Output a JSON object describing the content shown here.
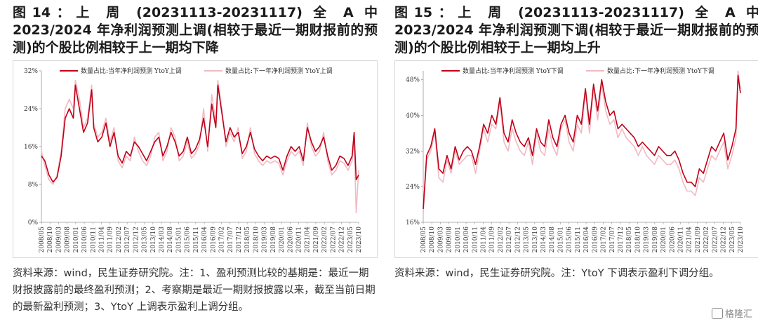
{
  "charts": [
    {
      "title": "图14：上 周 (20231113-20231117) 全 A 中2023/2024 年净利润预测上调(相较于最近一期财报前的预测)的个股比例相较于上一期均下降",
      "note": "资料来源：wind，民生证券研究院。注：1、盈利预测比较的基期是：最近一期财报披露前的最终盈利预测；2、考察期是最近一期财报披露以来，截至当前日期的最新盈利预测；3、YtoY 上调表示盈利上调分组。",
      "chart_data": {
        "type": "line",
        "ylim": [
          0,
          32
        ],
        "yticks": [
          0,
          8,
          16,
          24,
          32
        ],
        "ytick_labels": [
          "0%",
          "8%",
          "16%",
          "24%",
          "32%"
        ],
        "xtick_labels": [
          "2008/05",
          "2008/10",
          "2009/03",
          "2009/08",
          "2010/01",
          "2010/06",
          "2010/11",
          "2011/04",
          "2011/09",
          "2012/02",
          "2012/07",
          "2012/12",
          "2013/05",
          "2013/10",
          "2014/03",
          "2014/08",
          "2015/01",
          "2015/06",
          "2015/11",
          "2016/04",
          "2016/09",
          "2017/02",
          "2017/07",
          "2017/12",
          "2018/05",
          "2018/10",
          "2019/03",
          "2019/08",
          "2020/01",
          "2020/06",
          "2020/11",
          "2021/04",
          "2021/09",
          "2022/02",
          "2022/07",
          "2022/12",
          "2023/05",
          "2023/10"
        ],
        "x_start": 2008.33,
        "x_end": 2023.92,
        "series": [
          {
            "name": "数量占比:当年净利润预测 YtoY上调",
            "color": "#c00018",
            "width": 1.6,
            "x": [
              2008.33,
              2008.5,
              2008.7,
              2008.9,
              2009.1,
              2009.3,
              2009.5,
              2009.7,
              2009.9,
              2010.0,
              2010.2,
              2010.4,
              2010.6,
              2010.8,
              2010.9,
              2011.1,
              2011.3,
              2011.5,
              2011.7,
              2011.9,
              2012.1,
              2012.3,
              2012.5,
              2012.7,
              2012.9,
              2013.1,
              2013.3,
              2013.5,
              2013.7,
              2013.9,
              2014.1,
              2014.3,
              2014.5,
              2014.7,
              2014.9,
              2015.1,
              2015.3,
              2015.5,
              2015.7,
              2015.9,
              2016.1,
              2016.3,
              2016.5,
              2016.7,
              2016.9,
              2017.0,
              2017.2,
              2017.4,
              2017.6,
              2017.8,
              2018.0,
              2018.2,
              2018.4,
              2018.6,
              2018.8,
              2019.0,
              2019.2,
              2019.4,
              2019.6,
              2019.8,
              2020.0,
              2020.2,
              2020.4,
              2020.6,
              2020.8,
              2021.0,
              2021.2,
              2021.4,
              2021.6,
              2021.8,
              2022.0,
              2022.2,
              2022.4,
              2022.6,
              2022.8,
              2023.0,
              2023.2,
              2023.4,
              2023.6,
              2023.7,
              2023.8,
              2023.92
            ],
            "y": [
              14,
              13,
              10,
              8.5,
              9.5,
              14,
              22,
              24,
              22,
              29,
              24,
              19,
              21,
              28,
              20,
              17,
              18,
              21,
              16,
              19,
              14,
              12.5,
              15,
              14,
              17,
              16,
              14.5,
              13,
              15,
              17,
              18,
              14,
              16,
              19,
              17,
              14,
              15,
              18,
              14.5,
              15.5,
              17.5,
              22,
              16,
              25,
              20,
              29,
              23,
              17,
              20,
              18,
              19,
              14.5,
              16,
              19,
              15.5,
              14,
              13,
              14,
              13.5,
              14,
              13.5,
              11,
              14,
              16,
              15,
              16,
              13,
              20,
              17,
              15,
              16,
              18,
              14,
              11,
              12,
              14,
              13.5,
              12,
              14,
              19,
              9,
              10
            ]
          },
          {
            "name": "数量占比:下一年净利润预测 YtoY上调",
            "color": "#f2b9c2",
            "width": 1.6,
            "x": [
              2008.33,
              2008.5,
              2008.7,
              2008.9,
              2009.1,
              2009.3,
              2009.5,
              2009.7,
              2009.9,
              2010.0,
              2010.2,
              2010.4,
              2010.6,
              2010.8,
              2010.9,
              2011.1,
              2011.3,
              2011.5,
              2011.7,
              2011.9,
              2012.1,
              2012.3,
              2012.5,
              2012.7,
              2012.9,
              2013.1,
              2013.3,
              2013.5,
              2013.7,
              2013.9,
              2014.1,
              2014.3,
              2014.5,
              2014.7,
              2014.9,
              2015.1,
              2015.3,
              2015.5,
              2015.7,
              2015.9,
              2016.1,
              2016.3,
              2016.5,
              2016.7,
              2016.9,
              2017.0,
              2017.2,
              2017.4,
              2017.6,
              2017.8,
              2018.0,
              2018.2,
              2018.4,
              2018.6,
              2018.8,
              2019.0,
              2019.2,
              2019.4,
              2019.6,
              2019.8,
              2020.0,
              2020.2,
              2020.4,
              2020.6,
              2020.8,
              2021.0,
              2021.2,
              2021.4,
              2021.6,
              2021.8,
              2022.0,
              2022.2,
              2022.4,
              2022.6,
              2022.8,
              2023.0,
              2023.2,
              2023.4,
              2023.6,
              2023.7,
              2023.8,
              2023.92
            ],
            "y": [
              15,
              12,
              9,
              8,
              10,
              15,
              24,
              26,
              24,
              30,
              26,
              20,
              22,
              29,
              21,
              18,
              19,
              22,
              17,
              20,
              13,
              11.5,
              14,
              13,
              18,
              15,
              13,
              12,
              14,
              18,
              19,
              13,
              15,
              20,
              18,
              13,
              14,
              17,
              13.5,
              14.5,
              16.5,
              24,
              15,
              27,
              21,
              30,
              24,
              16,
              19,
              17,
              20,
              13.5,
              15,
              20,
              14.5,
              13,
              12,
              13,
              12.5,
              13,
              12.5,
              10,
              13,
              15,
              14,
              15,
              12,
              21,
              16,
              14,
              15,
              19,
              13,
              10,
              11,
              13,
              12.5,
              11,
              13,
              17,
              2,
              11
            ]
          }
        ]
      }
    },
    {
      "title": "图15：上 周 (20231113-20231117) 全 A 中2023/2024 年净利润预测下调(相较于最近一期财报前的预测)的个股比例相较于上一期均上升",
      "note": "资料来源：wind，民生证券研究院。注：YtoY 下调表示盈利下调分组。",
      "chart_data": {
        "type": "line",
        "ylim": [
          16,
          50
        ],
        "yticks": [
          16,
          24,
          32,
          40,
          48
        ],
        "ytick_labels": [
          "16%",
          "24%",
          "32%",
          "40%",
          "48%"
        ],
        "xtick_labels": [
          "2008/05",
          "2008/10",
          "2009/03",
          "2009/08",
          "2010/01",
          "2010/06",
          "2010/11",
          "2011/04",
          "2011/09",
          "2012/02",
          "2012/07",
          "2012/12",
          "2013/05",
          "2013/10",
          "2014/03",
          "2014/08",
          "2015/01",
          "2015/06",
          "2015/11",
          "2016/04",
          "2016/09",
          "2017/02",
          "2017/07",
          "2017/12",
          "2018/05",
          "2018/10",
          "2019/03",
          "2019/08",
          "2020/01",
          "2020/06",
          "2020/11",
          "2021/04",
          "2021/09",
          "2022/02",
          "2022/07",
          "2022/12",
          "2023/05",
          "2023/10"
        ],
        "x_start": 2008.33,
        "x_end": 2023.92,
        "series": [
          {
            "name": "数量占比:当年净利润预测 YtoY下调",
            "color": "#c00018",
            "width": 1.6,
            "x": [
              2008.33,
              2008.5,
              2008.7,
              2008.9,
              2009.1,
              2009.3,
              2009.5,
              2009.7,
              2009.9,
              2010.1,
              2010.3,
              2010.5,
              2010.7,
              2010.9,
              2011.1,
              2011.3,
              2011.5,
              2011.7,
              2011.9,
              2012.1,
              2012.3,
              2012.5,
              2012.7,
              2012.9,
              2013.1,
              2013.3,
              2013.5,
              2013.7,
              2013.9,
              2014.1,
              2014.3,
              2014.5,
              2014.7,
              2014.9,
              2015.1,
              2015.3,
              2015.5,
              2015.7,
              2015.9,
              2016.1,
              2016.3,
              2016.5,
              2016.7,
              2016.9,
              2017.1,
              2017.3,
              2017.5,
              2017.7,
              2017.9,
              2018.1,
              2018.3,
              2018.5,
              2018.7,
              2018.9,
              2019.1,
              2019.3,
              2019.5,
              2019.7,
              2019.9,
              2020.1,
              2020.3,
              2020.5,
              2020.7,
              2020.9,
              2021.1,
              2021.3,
              2021.5,
              2021.7,
              2021.9,
              2022.1,
              2022.3,
              2022.5,
              2022.7,
              2022.9,
              2023.1,
              2023.3,
              2023.5,
              2023.7,
              2023.8,
              2023.92
            ],
            "y": [
              19,
              31,
              33,
              37,
              28,
              27,
              31,
              28,
              33,
              30,
              32,
              33,
              32,
              29,
              33,
              38,
              36,
              40,
              38,
              44,
              36,
              34,
              39,
              36,
              34,
              33,
              35,
              31,
              37,
              34,
              33,
              39,
              35,
              33,
              38,
              40,
              36,
              34,
              40,
              38,
              46,
              38,
              47,
              41,
              48,
              43,
              40,
              41,
              37,
              38,
              37,
              36,
              35,
              33,
              34,
              33,
              32,
              31,
              33,
              32,
              31,
              31,
              32,
              30,
              27,
              25,
              25,
              24,
              28,
              27,
              30,
              33,
              32,
              34,
              36,
              30,
              33,
              37,
              49,
              45
            ]
          },
          {
            "name": "数量占比:下一年净利润预测 YtoY下调",
            "color": "#f2b9c2",
            "width": 1.6,
            "x": [
              2008.33,
              2008.5,
              2008.7,
              2008.9,
              2009.1,
              2009.3,
              2009.5,
              2009.7,
              2009.9,
              2010.1,
              2010.3,
              2010.5,
              2010.7,
              2010.9,
              2011.1,
              2011.3,
              2011.5,
              2011.7,
              2011.9,
              2012.1,
              2012.3,
              2012.5,
              2012.7,
              2012.9,
              2013.1,
              2013.3,
              2013.5,
              2013.7,
              2013.9,
              2014.1,
              2014.3,
              2014.5,
              2014.7,
              2014.9,
              2015.1,
              2015.3,
              2015.5,
              2015.7,
              2015.9,
              2016.1,
              2016.3,
              2016.5,
              2016.7,
              2016.9,
              2017.1,
              2017.3,
              2017.5,
              2017.7,
              2017.9,
              2018.1,
              2018.3,
              2018.5,
              2018.7,
              2018.9,
              2019.1,
              2019.3,
              2019.5,
              2019.7,
              2019.9,
              2020.1,
              2020.3,
              2020.5,
              2020.7,
              2020.9,
              2021.1,
              2021.3,
              2021.5,
              2021.7,
              2021.9,
              2022.1,
              2022.3,
              2022.5,
              2022.7,
              2022.9,
              2023.1,
              2023.3,
              2023.5,
              2023.7,
              2023.8,
              2023.92
            ],
            "y": [
              18,
              30,
              32,
              36,
              26,
              25,
              30,
              27,
              32,
              29,
              30,
              31,
              31,
              27,
              32,
              37,
              34,
              38,
              37,
              43,
              34,
              32,
              37,
              34,
              32,
              31,
              34,
              29,
              36,
              32,
              31,
              37,
              33,
              31,
              37,
              39,
              34,
              32,
              38,
              36,
              45,
              36,
              46,
              39,
              47,
              41,
              38,
              39,
              35,
              37,
              35,
              34,
              33,
              31,
              33,
              31,
              30,
              29,
              31,
              30,
              29,
              29,
              30,
              28,
              25,
              23,
              23,
              22,
              26,
              25,
              28,
              31,
              30,
              32,
              34,
              28,
              31,
              35,
              50,
              46
            ]
          }
        ]
      }
    }
  ],
  "watermark": "格隆汇"
}
